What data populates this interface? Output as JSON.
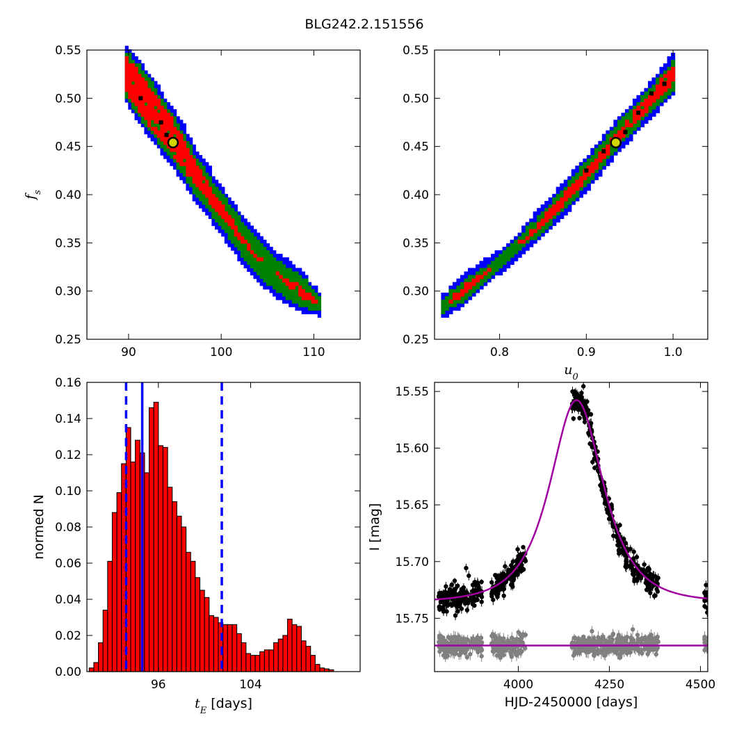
{
  "figure": {
    "suptitle": "BLG242.2.151556"
  },
  "colors": {
    "sigma3": "#0000ff",
    "sigma2": "#008000",
    "sigma1": "#ff0000",
    "best_cell": "#000000",
    "marker_face": "#d4d400",
    "histogram_bar": "#ff0000",
    "bound_line": "#0000ff",
    "model_curve": "#a100a1",
    "data_points": "#000000",
    "residual_points": "#808080"
  },
  "chart_data": [
    {
      "id": "tE-fs",
      "type": "heatmap",
      "xlabel": "",
      "ylabel": "f_s",
      "xlim": [
        85.5,
        115
      ],
      "ylim": [
        0.25,
        0.55
      ],
      "xticks": [
        "90",
        "100",
        "110"
      ],
      "yticks": [
        "0.25",
        "0.30",
        "0.35",
        "0.40",
        "0.45",
        "0.50",
        "0.55"
      ],
      "band": {
        "center": [
          [
            89.8,
            0.525
          ],
          [
            91.0,
            0.51
          ],
          [
            92.5,
            0.49
          ],
          [
            94.0,
            0.47
          ],
          [
            95.5,
            0.45
          ],
          [
            97.0,
            0.425
          ],
          [
            98.5,
            0.405
          ],
          [
            100.0,
            0.385
          ],
          [
            101.5,
            0.365
          ],
          [
            103.0,
            0.345
          ],
          [
            104.5,
            0.33
          ],
          [
            106.0,
            0.318
          ],
          [
            107.5,
            0.308
          ],
          [
            109.0,
            0.298
          ],
          [
            110.6,
            0.287
          ]
        ],
        "red_half_width_y": [
          0.017,
          0.02,
          0.02,
          0.017,
          0.016,
          0.012,
          0.008,
          0.006,
          0.004,
          0.002,
          0.0,
          0.0,
          0.003,
          0.005,
          0.0
        ],
        "green_half_width_y": [
          0.01,
          0.022,
          0.025,
          0.024,
          0.022,
          0.02,
          0.018,
          0.017,
          0.017,
          0.017,
          0.017,
          0.016,
          0.016,
          0.014,
          0.006
        ],
        "blue_half_width_y": [
          0.008,
          0.028,
          0.032,
          0.031,
          0.03,
          0.028,
          0.026,
          0.025,
          0.025,
          0.025,
          0.024,
          0.023,
          0.022,
          0.02,
          0.008
        ]
      },
      "best_cells": [
        [
          91.3,
          0.5
        ],
        [
          93.5,
          0.475
        ],
        [
          94.1,
          0.462
        ]
      ],
      "best_fit": [
        94.8,
        0.454
      ]
    },
    {
      "id": "u0-fs",
      "type": "heatmap",
      "xlabel": "u_0",
      "ylabel": "",
      "xlim": [
        0.725,
        1.04
      ],
      "ylim": [
        0.25,
        0.55
      ],
      "xticks": [
        "0.8",
        "0.9",
        "1.0"
      ],
      "yticks": [
        "0.25",
        "0.30",
        "0.35",
        "0.40",
        "0.45",
        "0.50",
        "0.55"
      ],
      "band": {
        "center": [
          [
            0.735,
            0.285
          ],
          [
            0.76,
            0.302
          ],
          [
            0.79,
            0.323
          ],
          [
            0.82,
            0.347
          ],
          [
            0.85,
            0.373
          ],
          [
            0.88,
            0.402
          ],
          [
            0.91,
            0.432
          ],
          [
            0.94,
            0.465
          ],
          [
            0.97,
            0.495
          ],
          [
            1.0,
            0.525
          ]
        ],
        "red_half_width_y": [
          0.0,
          0.004,
          0.0,
          0.0,
          0.004,
          0.005,
          0.005,
          0.005,
          0.006,
          0.009
        ],
        "green_half_width_y": [
          0.005,
          0.007,
          0.007,
          0.007,
          0.007,
          0.008,
          0.008,
          0.008,
          0.009,
          0.01
        ],
        "blue_half_width_y": [
          0.006,
          0.009,
          0.009,
          0.009,
          0.01,
          0.011,
          0.012,
          0.013,
          0.014,
          0.012
        ]
      },
      "best_cells": [
        [
          0.9,
          0.425
        ],
        [
          0.92,
          0.445
        ],
        [
          0.945,
          0.465
        ],
        [
          0.96,
          0.485
        ],
        [
          0.975,
          0.505
        ],
        [
          0.99,
          0.515
        ]
      ],
      "best_fit": [
        0.934,
        0.454
      ]
    },
    {
      "id": "tE-hist",
      "type": "bar",
      "xlabel_math": "t_E",
      "xlabel_suffix": "[days]",
      "ylabel": "normed N",
      "xlim": [
        89.8,
        113.5
      ],
      "ylim": [
        0.0,
        0.16
      ],
      "xticks": [
        "96",
        "104"
      ],
      "yticks": [
        "0.00",
        "0.02",
        "0.04",
        "0.06",
        "0.08",
        "0.10",
        "0.12",
        "0.14",
        "0.16"
      ],
      "bin_start": 90.0,
      "bin_width": 0.4,
      "values": [
        0.002,
        0.005,
        0.016,
        0.034,
        0.061,
        0.088,
        0.099,
        0.115,
        0.135,
        0.116,
        0.128,
        0.121,
        0.11,
        0.146,
        0.149,
        0.125,
        0.124,
        0.102,
        0.094,
        0.086,
        0.08,
        0.066,
        0.061,
        0.052,
        0.045,
        0.041,
        0.031,
        0.03,
        0.027,
        0.026,
        0.026,
        0.026,
        0.021,
        0.016,
        0.01,
        0.009,
        0.009,
        0.011,
        0.012,
        0.012,
        0.016,
        0.018,
        0.02,
        0.029,
        0.026,
        0.025,
        0.017,
        0.014,
        0.009,
        0.004,
        0.002,
        0.0015,
        0.001
      ],
      "best_value": 94.6,
      "lower_bound": 93.2,
      "upper_bound": 101.5
    },
    {
      "id": "lightcurve",
      "type": "scatter",
      "xlabel": "HJD-2450000 [days]",
      "ylabel": "I [mag]",
      "xlim": [
        3770,
        4520
      ],
      "ylim": [
        15.797,
        15.542
      ],
      "y_inverted": true,
      "xticks": [
        "4000",
        "4250",
        "4500"
      ],
      "yticks": [
        "15.55",
        "15.60",
        "15.65",
        "15.70",
        "15.75"
      ],
      "model": {
        "t0": 4160,
        "tE": 94.8,
        "u0": 0.934,
        "fs": 0.454,
        "base": 15.736
      },
      "observing_seasons": [
        [
          3780,
          3900
        ],
        [
          3925,
          4020
        ],
        [
          4145,
          4385
        ],
        [
          4510,
          4520
        ]
      ],
      "residual_level": 15.774
    }
  ]
}
